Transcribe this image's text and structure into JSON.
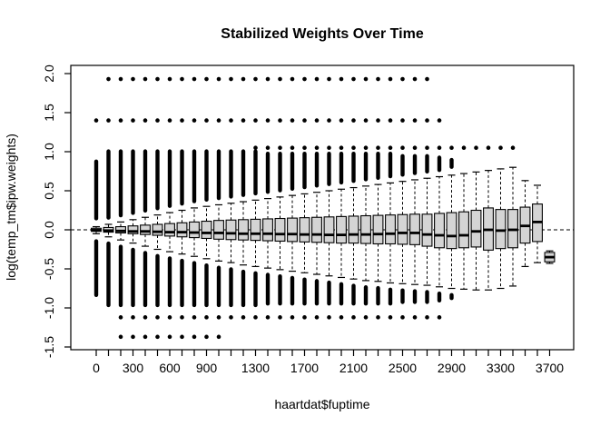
{
  "figure": {
    "title": "Stabilized Weights Over Time",
    "xlabel": "haartdat$fuptime",
    "ylabel": "log(temp_tm$ipw.weights)",
    "background_color": "#ffffff",
    "foreground_color": "#000000",
    "box_fill_color": "#d4d4d4"
  },
  "chart_data": {
    "type": "boxplot",
    "title": "Stabilized Weights Over Time",
    "xlabel": "haartdat$fuptime",
    "ylabel": "log(temp_tm$ipw.weights)",
    "ylim": [
      -1.55,
      2.15
    ],
    "y_ticks": [
      -1.5,
      -1.0,
      -0.5,
      0.0,
      0.5,
      1.0,
      1.5,
      2.0
    ],
    "y_tick_labels": [
      "-1.5",
      "-1.0",
      "-0.5",
      "0.0",
      "0.5",
      "1.0",
      "1.5",
      "2.0"
    ],
    "x_tick_every_group": true,
    "x_labeled_ticks": [
      {
        "index": 0,
        "label": "0"
      },
      {
        "index": 3,
        "label": "300"
      },
      {
        "index": 6,
        "label": "600"
      },
      {
        "index": 9,
        "label": "900"
      },
      {
        "index": 13,
        "label": "1300"
      },
      {
        "index": 17,
        "label": "1700"
      },
      {
        "index": 21,
        "label": "2100"
      },
      {
        "index": 25,
        "label": "2500"
      },
      {
        "index": 29,
        "label": "2900"
      },
      {
        "index": 33,
        "label": "3300"
      },
      {
        "index": 37,
        "label": "3700"
      }
    ],
    "reference_line": {
      "y": 0.0,
      "style": "dashed"
    },
    "grid": false,
    "legend": null,
    "box_fields": [
      "fuptime",
      "whisker_low",
      "q1",
      "median",
      "q3",
      "whisker_high"
    ],
    "boxes": [
      [
        0,
        -0.05,
        -0.02,
        -0.005,
        0.02,
        0.04
      ],
      [
        100,
        -0.09,
        -0.03,
        -0.01,
        0.03,
        0.07
      ],
      [
        200,
        -0.13,
        -0.04,
        -0.015,
        0.04,
        0.1
      ],
      [
        300,
        -0.17,
        -0.05,
        -0.02,
        0.05,
        0.13
      ],
      [
        400,
        -0.21,
        -0.06,
        -0.02,
        0.06,
        0.16
      ],
      [
        500,
        -0.25,
        -0.07,
        -0.025,
        0.07,
        0.19
      ],
      [
        600,
        -0.28,
        -0.08,
        -0.03,
        0.08,
        0.22
      ],
      [
        700,
        -0.31,
        -0.09,
        -0.03,
        0.09,
        0.25
      ],
      [
        800,
        -0.34,
        -0.1,
        -0.035,
        0.1,
        0.28
      ],
      [
        900,
        -0.37,
        -0.11,
        -0.04,
        0.11,
        0.3
      ],
      [
        1000,
        -0.4,
        -0.12,
        -0.04,
        0.12,
        0.32
      ],
      [
        1100,
        -0.42,
        -0.125,
        -0.045,
        0.125,
        0.34
      ],
      [
        1200,
        -0.45,
        -0.13,
        -0.05,
        0.13,
        0.36
      ],
      [
        1300,
        -0.47,
        -0.135,
        -0.05,
        0.135,
        0.38
      ],
      [
        1400,
        -0.49,
        -0.14,
        -0.05,
        0.14,
        0.4
      ],
      [
        1500,
        -0.51,
        -0.145,
        -0.055,
        0.145,
        0.42
      ],
      [
        1600,
        -0.53,
        -0.15,
        -0.055,
        0.15,
        0.44
      ],
      [
        1700,
        -0.55,
        -0.155,
        -0.06,
        0.155,
        0.46
      ],
      [
        1800,
        -0.57,
        -0.16,
        -0.06,
        0.16,
        0.48
      ],
      [
        1900,
        -0.59,
        -0.165,
        -0.065,
        0.165,
        0.5
      ],
      [
        2000,
        -0.61,
        -0.17,
        -0.065,
        0.17,
        0.52
      ],
      [
        2100,
        -0.63,
        -0.17,
        -0.06,
        0.175,
        0.54
      ],
      [
        2200,
        -0.65,
        -0.175,
        -0.06,
        0.18,
        0.56
      ],
      [
        2300,
        -0.66,
        -0.18,
        -0.055,
        0.185,
        0.58
      ],
      [
        2400,
        -0.68,
        -0.18,
        -0.05,
        0.19,
        0.6
      ],
      [
        2500,
        -0.69,
        -0.185,
        -0.04,
        0.195,
        0.62
      ],
      [
        2600,
        -0.7,
        -0.19,
        -0.04,
        0.2,
        0.64
      ],
      [
        2700,
        -0.71,
        -0.21,
        -0.06,
        0.2,
        0.66
      ],
      [
        2800,
        -0.73,
        -0.23,
        -0.07,
        0.21,
        0.68
      ],
      [
        2900,
        -0.75,
        -0.24,
        -0.08,
        0.22,
        0.7
      ],
      [
        3000,
        -0.76,
        -0.23,
        -0.07,
        0.23,
        0.72
      ],
      [
        3100,
        -0.77,
        -0.22,
        -0.02,
        0.25,
        0.74
      ],
      [
        3200,
        -0.77,
        -0.26,
        0.0,
        0.28,
        0.76
      ],
      [
        3300,
        -0.75,
        -0.24,
        -0.01,
        0.26,
        0.78
      ],
      [
        3400,
        -0.72,
        -0.23,
        0.0,
        0.26,
        0.8
      ],
      [
        3500,
        -0.47,
        -0.17,
        0.05,
        0.29,
        0.63
      ],
      [
        3600,
        -0.42,
        -0.15,
        0.1,
        0.33,
        0.57
      ],
      [
        3700,
        -0.43,
        -0.41,
        -0.35,
        -0.29,
        -0.27
      ]
    ],
    "outlier_columns_high": [
      [
        0.12,
        0.9
      ],
      [
        0.13,
        1.03
      ],
      [
        0.16,
        1.03
      ],
      [
        0.19,
        1.03
      ],
      [
        0.22,
        1.03
      ],
      [
        0.25,
        1.03
      ],
      [
        0.28,
        1.03
      ],
      [
        0.31,
        1.03
      ],
      [
        0.34,
        1.03
      ],
      [
        0.36,
        1.03
      ],
      [
        0.38,
        1.03
      ],
      [
        0.4,
        1.03
      ],
      [
        0.42,
        1.03
      ],
      [
        0.44,
        1.03
      ],
      [
        0.46,
        1.0
      ],
      [
        0.48,
        1.0
      ],
      [
        0.5,
        1.0
      ],
      [
        0.52,
        1.0
      ],
      [
        0.54,
        1.0
      ],
      [
        0.56,
        1.0
      ],
      [
        0.58,
        1.0
      ],
      [
        0.6,
        1.0
      ],
      [
        0.62,
        1.0
      ],
      [
        0.64,
        1.0
      ],
      [
        0.66,
        1.0
      ],
      [
        0.68,
        0.97
      ],
      [
        0.7,
        0.97
      ],
      [
        0.72,
        0.97
      ],
      [
        0.74,
        0.95
      ],
      [
        0.78,
        0.92
      ],
      null,
      null,
      null,
      null,
      null,
      null,
      null,
      null
    ],
    "outlier_columns_low": [
      [
        -0.86,
        -0.12
      ],
      [
        -0.99,
        -0.15
      ],
      [
        -0.99,
        -0.19
      ],
      [
        -0.99,
        -0.23
      ],
      [
        -0.99,
        -0.27
      ],
      [
        -0.99,
        -0.31
      ],
      [
        -0.99,
        -0.34
      ],
      [
        -0.99,
        -0.37
      ],
      [
        -0.99,
        -0.4
      ],
      [
        -0.99,
        -0.43
      ],
      [
        -0.99,
        -0.46
      ],
      [
        -0.99,
        -0.48
      ],
      [
        -0.99,
        -0.51
      ],
      [
        -0.99,
        -0.53
      ],
      [
        -0.97,
        -0.55
      ],
      [
        -0.97,
        -0.57
      ],
      [
        -0.97,
        -0.59
      ],
      [
        -0.97,
        -0.61
      ],
      [
        -0.97,
        -0.63
      ],
      [
        -0.97,
        -0.65
      ],
      [
        -0.97,
        -0.67
      ],
      [
        -0.97,
        -0.69
      ],
      [
        -0.97,
        -0.71
      ],
      [
        -0.97,
        -0.72
      ],
      [
        -0.97,
        -0.74
      ],
      [
        -0.95,
        -0.75
      ],
      [
        -0.95,
        -0.76
      ],
      [
        -0.95,
        -0.77
      ],
      [
        -0.93,
        -0.79
      ],
      [
        -0.9,
        -0.81
      ],
      null,
      null,
      null,
      null,
      null,
      null,
      null,
      null
    ],
    "outlier_rows": [
      {
        "y": 1.93,
        "from": 1,
        "to": 27
      },
      {
        "y": 1.4,
        "from": 0,
        "to": 28
      },
      {
        "y": 1.05,
        "from": 13,
        "to": 34
      },
      {
        "y": -1.12,
        "from": 2,
        "to": 28
      },
      {
        "y": -1.37,
        "from": 2,
        "to": 10
      }
    ]
  }
}
